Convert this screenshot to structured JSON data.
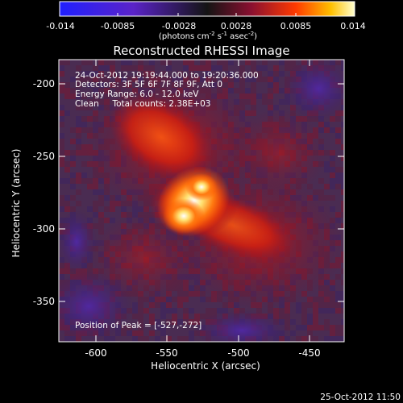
{
  "colorbar": {
    "ticks": [
      "-0.014",
      "-0.0085",
      "-0.0028",
      "0.0028",
      "0.0085",
      "0.014"
    ],
    "units_parts": [
      "(photons cm",
      "-2",
      " s",
      "-1",
      " asec",
      "-2",
      ")"
    ]
  },
  "title": "Reconstructed RHESSI Image",
  "info": {
    "line1": "24-Oct-2012 19:19:44.000 to 19:20:36.000",
    "line2": "Detectors: 3F 5F 6F 7F 8F 9F, Att 0",
    "line3": "Energy Range: 6.0 - 12.0 keV",
    "line4": "Clean     Total counts: 2.38E+03"
  },
  "peak_label": "Position of Peak = [-527,-272]",
  "axes": {
    "xlabel": "Heliocentric X (arcsec)",
    "ylabel": "Heliocentric Y (arcsec)",
    "xticks": [
      "-600",
      "-550",
      "-500",
      "-450"
    ],
    "yticks": [
      "-200",
      "-250",
      "-300",
      "-350"
    ]
  },
  "timestamp": "25-Oct-2012 11:50"
}
